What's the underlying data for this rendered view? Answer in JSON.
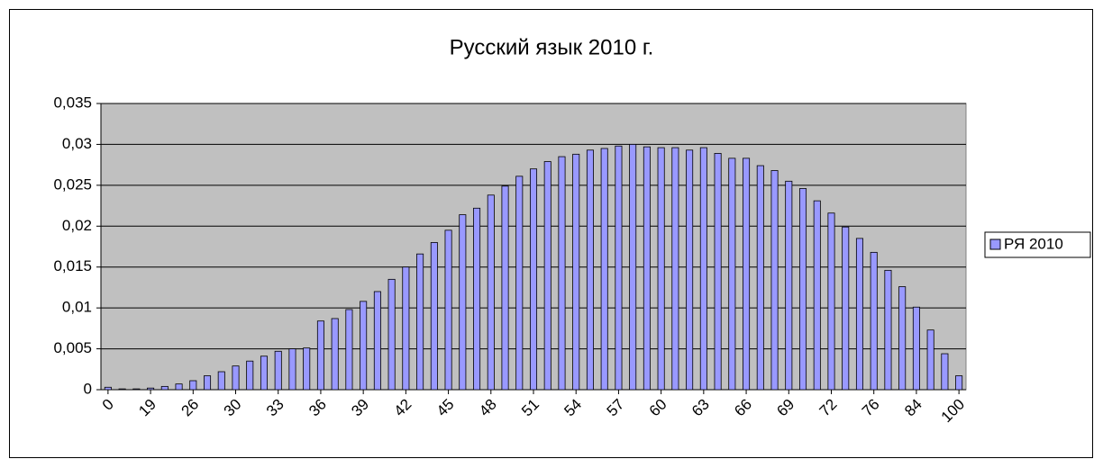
{
  "chart_data": {
    "type": "bar",
    "title": "Русский язык 2010 г.",
    "categories": [
      "0",
      null,
      null,
      "19",
      null,
      null,
      "26",
      null,
      null,
      "30",
      null,
      null,
      "33",
      null,
      null,
      "36",
      null,
      null,
      "39",
      null,
      null,
      "42",
      null,
      null,
      "45",
      null,
      null,
      "48",
      null,
      null,
      "51",
      null,
      null,
      "54",
      null,
      null,
      "57",
      null,
      null,
      "60",
      null,
      null,
      "63",
      null,
      null,
      "66",
      null,
      null,
      "69",
      null,
      null,
      "72",
      null,
      null,
      "76",
      null,
      null,
      "84",
      null,
      null,
      "100"
    ],
    "series": [
      {
        "name": "РЯ 2010",
        "color": "#9999ff",
        "values": [
          0.0003,
          0.0001,
          0.0001,
          0.0002,
          0.0004,
          0.0007,
          0.0011,
          0.0017,
          0.0022,
          0.0029,
          0.0035,
          0.0041,
          0.0047,
          0.005,
          0.0051,
          0.0084,
          0.0087,
          0.0098,
          0.0108,
          0.012,
          0.0135,
          0.015,
          0.0166,
          0.018,
          0.0195,
          0.0214,
          0.0222,
          0.0238,
          0.0249,
          0.0261,
          0.027,
          0.0279,
          0.0285,
          0.0288,
          0.0293,
          0.0295,
          0.0298,
          0.03,
          0.0297,
          0.0296,
          0.0296,
          0.0293,
          0.0296,
          0.0289,
          0.0283,
          0.0283,
          0.0274,
          0.0268,
          0.0255,
          0.0246,
          0.0231,
          0.0216,
          0.0199,
          0.0185,
          0.0168,
          0.0146,
          0.0126,
          0.0101,
          0.0073,
          0.0044,
          0.0017
        ]
      }
    ],
    "ylim": [
      0,
      0.035
    ],
    "yticks": [
      0,
      {
        "value": 0.005,
        "label": "0,005"
      },
      {
        "value": 0.01,
        "label": "0,01"
      },
      {
        "value": 0.015,
        "label": "0,015"
      },
      {
        "value": 0.02,
        "label": "0,02"
      },
      {
        "value": 0.025,
        "label": "0,025"
      },
      {
        "value": 0.03,
        "label": "0,03"
      },
      {
        "value": 0.035,
        "label": "0,035"
      }
    ],
    "grid": true,
    "legend": "right"
  }
}
